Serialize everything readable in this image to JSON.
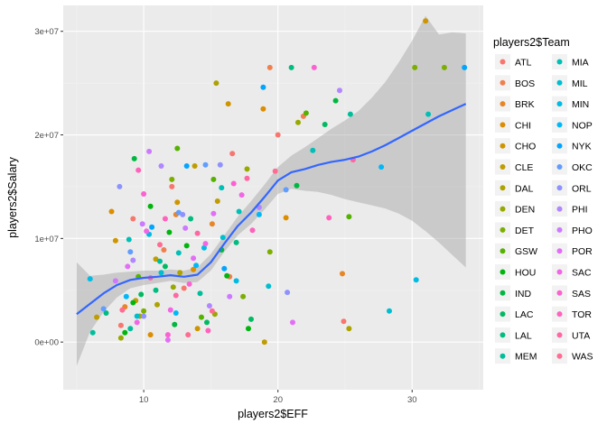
{
  "chart_data": {
    "type": "scatter",
    "title": "",
    "xlabel": "players2$EFF",
    "ylabel": "players2$Salary",
    "xlim": [
      4,
      35.3
    ],
    "ylim": [
      -4600000,
      32500000
    ],
    "x_ticks": [
      10,
      20,
      30
    ],
    "x_tick_labels": [
      "10",
      "20",
      "30"
    ],
    "y_ticks": [
      0,
      10000000,
      20000000,
      30000000
    ],
    "y_tick_labels": [
      "0e+00",
      "1e+07",
      "2e+07",
      "3e+07"
    ],
    "grid": true,
    "legend": {
      "title": "players2$Team",
      "placement": "right",
      "columns": 2,
      "entries": [
        {
          "name": "ATL",
          "color": "#F8766D"
        },
        {
          "name": "BOS",
          "color": "#F07F4E"
        },
        {
          "name": "BRK",
          "color": "#E88526"
        },
        {
          "name": "CHI",
          "color": "#DC8D00"
        },
        {
          "name": "CHO",
          "color": "#CE9500"
        },
        {
          "name": "CLE",
          "color": "#BF9C00"
        },
        {
          "name": "DAL",
          "color": "#ADA200"
        },
        {
          "name": "DEN",
          "color": "#97A800"
        },
        {
          "name": "DET",
          "color": "#7CAE00"
        },
        {
          "name": "GSW",
          "color": "#55B200"
        },
        {
          "name": "HOU",
          "color": "#00B50D"
        },
        {
          "name": "IND",
          "color": "#00B83F"
        },
        {
          "name": "LAC",
          "color": "#00BA62"
        },
        {
          "name": "LAL",
          "color": "#00BC80"
        },
        {
          "name": "MEM",
          "color": "#00BE9C"
        },
        {
          "name": "MIA",
          "color": "#00BFB6"
        },
        {
          "name": "MIL",
          "color": "#00BECF"
        },
        {
          "name": "MIN",
          "color": "#00BCE5"
        },
        {
          "name": "NOP",
          "color": "#00B8F8"
        },
        {
          "name": "NYK",
          "color": "#00A5FF"
        },
        {
          "name": "OKC",
          "color": "#619CFF"
        },
        {
          "name": "ORL",
          "color": "#8E92FF"
        },
        {
          "name": "PHI",
          "color": "#B186FF"
        },
        {
          "name": "PHO",
          "color": "#CD79FF"
        },
        {
          "name": "POR",
          "color": "#E36EF6"
        },
        {
          "name": "SAC",
          "color": "#F266E4"
        },
        {
          "name": "SAS",
          "color": "#FB61D1"
        },
        {
          "name": "TOR",
          "color": "#FF62BC"
        },
        {
          "name": "UTA",
          "color": "#FF67A4"
        },
        {
          "name": "WAS",
          "color": "#FF6C91"
        }
      ]
    },
    "smooth": {
      "method": "loess",
      "color": "#3366FF",
      "band_color": "#999999",
      "x": [
        5,
        6,
        7,
        8,
        9,
        10,
        11,
        12,
        13,
        14,
        15,
        16,
        17,
        18,
        19,
        20,
        21,
        22,
        23,
        24,
        25,
        26,
        27,
        28,
        29,
        30,
        31,
        32,
        33,
        34
      ],
      "y": [
        2700000,
        3700000,
        4700000,
        5500000,
        6000000,
        6200000,
        6300000,
        6450000,
        6300000,
        6500000,
        7700000,
        9500000,
        11200000,
        12500000,
        14000000,
        15600000,
        16400000,
        16700000,
        17100000,
        17400000,
        17600000,
        17900000,
        18400000,
        19000000,
        19700000,
        20400000,
        21100000,
        21800000,
        22400000,
        23000000
      ],
      "lower": [
        -2300000,
        1000000,
        2900000,
        4300000,
        5200000,
        5500000,
        5700000,
        5900000,
        5700000,
        5800000,
        6900000,
        8700000,
        10300000,
        11400000,
        12800000,
        14300000,
        14800000,
        14600000,
        14500000,
        14200000,
        13800000,
        13500000,
        13200000,
        12900000,
        12400000,
        11700000,
        10700000,
        9600000,
        8400000,
        7200000
      ],
      "upper": [
        7700000,
        6400000,
        6500000,
        6700000,
        6800000,
        6900000,
        6900000,
        7000000,
        6900000,
        7200000,
        8500000,
        10300000,
        12100000,
        13600000,
        15200000,
        16900000,
        18000000,
        18800000,
        19700000,
        20600000,
        21400000,
        22300000,
        23600000,
        25100000,
        27000000,
        29100000,
        31500000,
        29700000,
        29900000,
        29800000
      ]
    },
    "points": [
      [
        9.2,
        11900000,
        0
      ],
      [
        12.1,
        15000000,
        0
      ],
      [
        16.6,
        18200000,
        0
      ],
      [
        20.0,
        20000000,
        0
      ],
      [
        24.9,
        2000000,
        0
      ],
      [
        8.3,
        1600000,
        0
      ],
      [
        13.0,
        5200000,
        0
      ],
      [
        19.4,
        26500000,
        1
      ],
      [
        21.9,
        21800000,
        1
      ],
      [
        16.4,
        6300000,
        1
      ],
      [
        11.5,
        8900000,
        1
      ],
      [
        24.8,
        6600000,
        2
      ],
      [
        12.4,
        12300000,
        2
      ],
      [
        8.6,
        3400000,
        2
      ],
      [
        15.1,
        11400000,
        2
      ],
      [
        7.6,
        12600000,
        3
      ],
      [
        13.7,
        7000000,
        3
      ],
      [
        18.9,
        22500000,
        3
      ],
      [
        20.6,
        12000000,
        3
      ],
      [
        10.5,
        700000,
        3
      ],
      [
        7.9,
        9800000,
        4
      ],
      [
        31.0,
        31000000,
        4
      ],
      [
        12.5,
        13500000,
        4
      ],
      [
        16.3,
        23000000,
        4
      ],
      [
        14.0,
        1300000,
        4
      ],
      [
        6.5,
        2400000,
        5
      ],
      [
        13.8,
        17000000,
        5
      ],
      [
        15.5,
        13600000,
        5
      ],
      [
        10.9,
        8000000,
        5
      ],
      [
        19.0,
        0,
        5
      ],
      [
        9.4,
        4000000,
        5
      ],
      [
        15.4,
        25000000,
        6
      ],
      [
        25.3,
        1300000,
        6
      ],
      [
        9.7,
        2500000,
        6
      ],
      [
        12.7,
        6700000,
        6
      ],
      [
        11.0,
        3600000,
        6
      ],
      [
        21.5,
        21200000,
        7
      ],
      [
        12.2,
        5300000,
        7
      ],
      [
        8.3,
        400000,
        7
      ],
      [
        15.3,
        2700000,
        7
      ],
      [
        17.7,
        16700000,
        7
      ],
      [
        32.4,
        26500000,
        8
      ],
      [
        30.2,
        26500000,
        8
      ],
      [
        19.4,
        8700000,
        8
      ],
      [
        12.1,
        15700000,
        8
      ],
      [
        10.0,
        3000000,
        8
      ],
      [
        17.4,
        4400000,
        8
      ],
      [
        25.3,
        12100000,
        9
      ],
      [
        22.1,
        22100000,
        9
      ],
      [
        12.5,
        18700000,
        9
      ],
      [
        9.6,
        6300000,
        9
      ],
      [
        15.2,
        15700000,
        9
      ],
      [
        14.3,
        2400000,
        9
      ],
      [
        17.8,
        1300000,
        10
      ],
      [
        9.2,
        3800000,
        10
      ],
      [
        11.9,
        10600000,
        10
      ],
      [
        10.5,
        13100000,
        10
      ],
      [
        13.2,
        9300000,
        10
      ],
      [
        8.6,
        900000,
        10
      ],
      [
        16.2,
        6400000,
        10
      ],
      [
        24.3,
        23300000,
        11
      ],
      [
        21.4,
        15100000,
        11
      ],
      [
        9.3,
        17700000,
        11
      ],
      [
        12.3,
        1700000,
        11
      ],
      [
        15.8,
        8900000,
        11
      ],
      [
        11.6,
        7300000,
        12
      ],
      [
        23.5,
        21000000,
        12
      ],
      [
        9.8,
        4600000,
        12
      ],
      [
        14.7,
        1900000,
        12
      ],
      [
        18.0,
        2200000,
        12
      ],
      [
        21.0,
        26500000,
        13
      ],
      [
        13.5,
        11900000,
        13
      ],
      [
        7.2,
        2800000,
        13
      ],
      [
        16.9,
        9600000,
        13
      ],
      [
        10.9,
        5000000,
        13
      ],
      [
        25.4,
        22000000,
        14
      ],
      [
        6.2,
        900000,
        14
      ],
      [
        11.2,
        7800000,
        14
      ],
      [
        14.2,
        4700000,
        14
      ],
      [
        9.0,
        1300000,
        14
      ],
      [
        31.2,
        22000000,
        15
      ],
      [
        15.8,
        14900000,
        15
      ],
      [
        22.6,
        18500000,
        15
      ],
      [
        12.6,
        8600000,
        15
      ],
      [
        17.1,
        12600000,
        15
      ],
      [
        8.9,
        9900000,
        15
      ],
      [
        28.3,
        3000000,
        16
      ],
      [
        19.3,
        5400000,
        16
      ],
      [
        11.3,
        6700000,
        16
      ],
      [
        15.9,
        10100000,
        16
      ],
      [
        9.5,
        2500000,
        16
      ],
      [
        30.3,
        6000000,
        17
      ],
      [
        16.9,
        5900000,
        17
      ],
      [
        10.4,
        10400000,
        17
      ],
      [
        14.5,
        9100000,
        17
      ],
      [
        6.0,
        6100000,
        17
      ],
      [
        27.7,
        16900000,
        18
      ],
      [
        13.9,
        7400000,
        18
      ],
      [
        8.7,
        4400000,
        18
      ],
      [
        12.4,
        2800000,
        18
      ],
      [
        18.6,
        12300000,
        18
      ],
      [
        33.9,
        26500000,
        19
      ],
      [
        18.9,
        24600000,
        19
      ],
      [
        13.2,
        17000000,
        19
      ],
      [
        10.6,
        11100000,
        19
      ],
      [
        16.0,
        7100000,
        19
      ],
      [
        20.6,
        14700000,
        20
      ],
      [
        14.6,
        17100000,
        20
      ],
      [
        9.0,
        8700000,
        20
      ],
      [
        12.6,
        12500000,
        20
      ],
      [
        7.0,
        3200000,
        20
      ],
      [
        20.7,
        4800000,
        21
      ],
      [
        15.7,
        17100000,
        21
      ],
      [
        10.0,
        2500000,
        21
      ],
      [
        12.9,
        12300000,
        21
      ],
      [
        8.2,
        15000000,
        21
      ],
      [
        24.6,
        24300000,
        22
      ],
      [
        11.3,
        17000000,
        22
      ],
      [
        18.6,
        13000000,
        22
      ],
      [
        9.2,
        7900000,
        22
      ],
      [
        14.9,
        3500000,
        22
      ],
      [
        10.4,
        18400000,
        23
      ],
      [
        16.4,
        4400000,
        23
      ],
      [
        13.1,
        11000000,
        23
      ],
      [
        9.9,
        11400000,
        23
      ],
      [
        7.9,
        5900000,
        23
      ],
      [
        21.1,
        1900000,
        24
      ],
      [
        13.7,
        8100000,
        24
      ],
      [
        11.8,
        200000,
        24
      ],
      [
        15.2,
        12400000,
        24
      ],
      [
        8.8,
        7300000,
        24
      ],
      [
        14.6,
        9500000,
        25
      ],
      [
        10.2,
        10700000,
        25
      ],
      [
        12.0,
        3100000,
        25
      ],
      [
        17.3,
        14200000,
        25
      ],
      [
        9.5,
        1900000,
        25
      ],
      [
        22.7,
        26500000,
        26
      ],
      [
        16.7,
        15300000,
        26
      ],
      [
        13.4,
        5600000,
        26
      ],
      [
        10.0,
        14300000,
        26
      ],
      [
        11.8,
        700000,
        26
      ],
      [
        23.8,
        12000000,
        27
      ],
      [
        11.6,
        11900000,
        27
      ],
      [
        14.8,
        1100000,
        27
      ],
      [
        9.6,
        16600000,
        27
      ],
      [
        18.1,
        10800000,
        27
      ],
      [
        25.6,
        17600000,
        28
      ],
      [
        12.4,
        4500000,
        28
      ],
      [
        17.7,
        15800000,
        28
      ],
      [
        10.5,
        6200000,
        28
      ],
      [
        14.0,
        10500000,
        28
      ],
      [
        19.8,
        16500000,
        29
      ],
      [
        11.2,
        9400000,
        29
      ],
      [
        15.1,
        3000000,
        29
      ],
      [
        8.4,
        3100000,
        29
      ],
      [
        13.3,
        700000,
        29
      ]
    ]
  }
}
